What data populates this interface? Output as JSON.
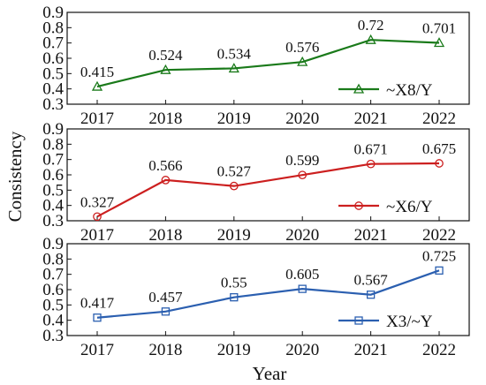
{
  "chart_data": [
    {
      "type": "line",
      "x": [
        "2017",
        "2018",
        "2019",
        "2020",
        "2021",
        "2022"
      ],
      "series": [
        {
          "name": "~X8/Y",
          "values": [
            0.415,
            0.524,
            0.534,
            0.576,
            0.72,
            0.701
          ],
          "labels": [
            "0.415",
            "0.524",
            "0.534",
            "0.576",
            "0.72",
            "0.701"
          ],
          "color": "#1a7a1a",
          "marker": "triangle"
        }
      ],
      "yticks": [
        "0.3",
        "0.4",
        "0.5",
        "0.6",
        "0.7",
        "0.8",
        "0.9"
      ],
      "ylim": [
        0.3,
        0.9
      ],
      "legend_placement": "bottom-right",
      "grid": false
    },
    {
      "type": "line",
      "x": [
        "2017",
        "2018",
        "2019",
        "2020",
        "2021",
        "2022"
      ],
      "series": [
        {
          "name": "~X6/Y",
          "values": [
            0.327,
            0.566,
            0.527,
            0.599,
            0.671,
            0.675
          ],
          "labels": [
            "0.327",
            "0.566",
            "0.527",
            "0.599",
            "0.671",
            "0.675"
          ],
          "color": "#cc1f1f",
          "marker": "circle"
        }
      ],
      "yticks": [
        "0.3",
        "0.4",
        "0.5",
        "0.6",
        "0.7",
        "0.8",
        "0.9"
      ],
      "ylim": [
        0.3,
        0.9
      ],
      "legend_placement": "bottom-right",
      "grid": false
    },
    {
      "type": "line",
      "x": [
        "2017",
        "2018",
        "2019",
        "2020",
        "2021",
        "2022"
      ],
      "series": [
        {
          "name": "X3/~Y",
          "values": [
            0.417,
            0.457,
            0.55,
            0.605,
            0.567,
            0.725
          ],
          "labels": [
            "0.417",
            "0.457",
            "0.55",
            "0.605",
            "0.567",
            "0.725"
          ],
          "color": "#2b5fb0",
          "marker": "square"
        }
      ],
      "yticks": [
        "0.3",
        "0.4",
        "0.5",
        "0.6",
        "0.7",
        "0.8",
        "0.9"
      ],
      "ylim": [
        0.3,
        0.9
      ],
      "legend_placement": "bottom-right",
      "grid": false
    }
  ],
  "axes": {
    "ylabel": "Consistency",
    "xlabel": "Year"
  }
}
